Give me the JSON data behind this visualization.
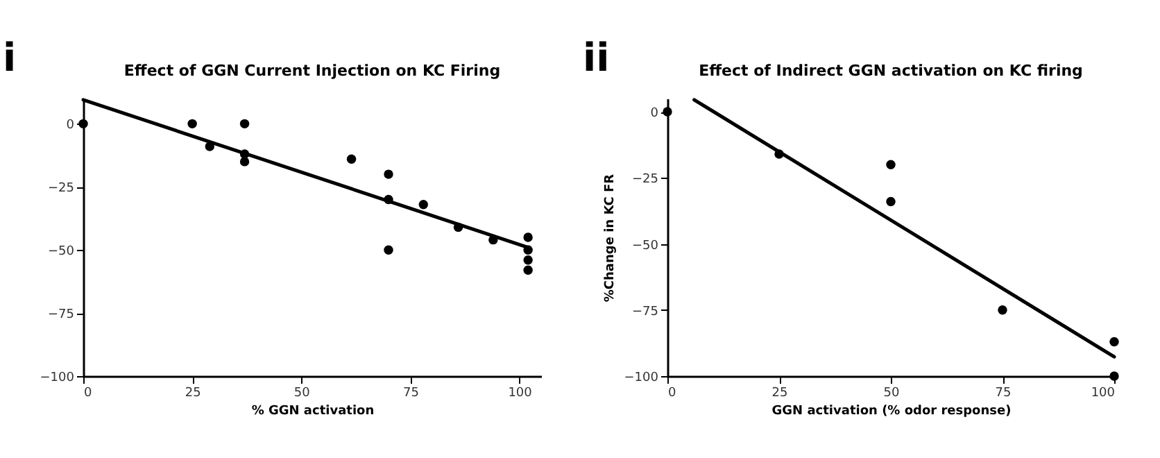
{
  "chart_data": [
    {
      "type": "scatter",
      "title": "Effect of GGN Current Injection on KC Firing",
      "xlabel": "% GGN activation",
      "annotations": [
        "i"
      ],
      "xlim": [
        0,
        105
      ],
      "xticks": [
        0,
        25,
        50,
        75,
        100
      ],
      "ylim": [
        -100,
        10
      ],
      "yticks": [
        -100,
        -75,
        -50,
        -25,
        0
      ],
      "grid": false,
      "marker": "circle",
      "series": [
        {
          "color": "#000000",
          "x": [
            0,
            25,
            29,
            37,
            37,
            37,
            61.5,
            70,
            70,
            70,
            78,
            86,
            94,
            102,
            102,
            102,
            102
          ],
          "values": [
            0,
            0,
            -9,
            0,
            -12,
            -15,
            -14,
            -20,
            -30,
            -50,
            -32,
            -41,
            -46,
            -45,
            -50,
            -54,
            -58
          ]
        },
        {
          "type": "line",
          "marker": "none",
          "color": "#000000",
          "x": [
            0,
            102
          ],
          "values": [
            9.5,
            -49
          ]
        }
      ]
    },
    {
      "type": "scatter",
      "title": "Effect of Indirect GGN activation on KC firing",
      "xlabel": "GGN activation (% odor response)",
      "ylabel": "%Change in KC FR",
      "annotations": [
        "ii"
      ],
      "xlim": [
        0,
        100
      ],
      "xticks": [
        0,
        25,
        50,
        75,
        100
      ],
      "ylim": [
        -100,
        5
      ],
      "yticks": [
        -100,
        -75,
        -50,
        -25,
        0
      ],
      "grid": false,
      "marker": "circle",
      "series": [
        {
          "color": "#000000",
          "x": [
            0,
            25,
            50,
            50,
            75,
            100,
            100
          ],
          "values": [
            0,
            -16,
            -20,
            -34,
            -75,
            -87,
            -100
          ]
        },
        {
          "type": "line",
          "marker": "none",
          "color": "#000000",
          "x": [
            6,
            100
          ],
          "values": [
            4.5,
            -92.7
          ]
        }
      ]
    }
  ]
}
